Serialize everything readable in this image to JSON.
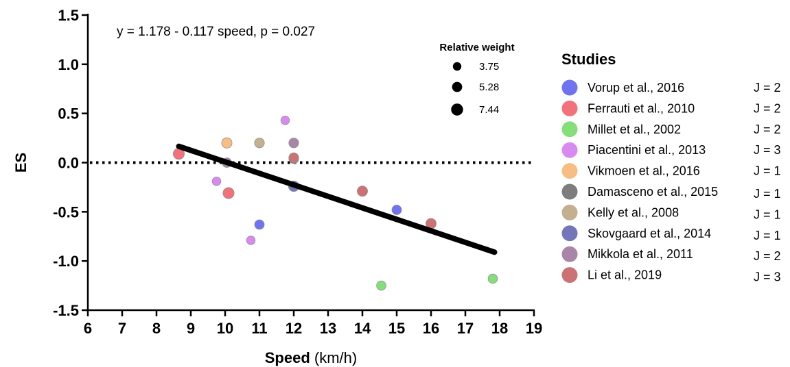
{
  "chart_data": {
    "type": "scatter",
    "xlabel": "Speed",
    "xlabel_unit": " (km/h)",
    "ylabel": "ES",
    "xlim": [
      6,
      19
    ],
    "ylim": [
      -1.5,
      1.5
    ],
    "x_ticks": [
      6,
      7,
      8,
      9,
      10,
      11,
      12,
      13,
      14,
      15,
      16,
      17,
      18,
      19
    ],
    "y_ticks": [
      "1.5",
      "1.0",
      "0.5",
      "0.0",
      "-0.5",
      "-1.0",
      "-1.5"
    ],
    "y_tick_values": [
      1.5,
      1.0,
      0.5,
      0.0,
      -0.5,
      -1.0,
      -1.5
    ],
    "reference_line": {
      "y": 0,
      "style": "dotted"
    },
    "regression": {
      "label": "y = 1.178 - 0.117 speed, p = 0.027",
      "intercept": 1.178,
      "slope": -0.117,
      "x_range": [
        8.65,
        17.85
      ]
    },
    "size_legend": {
      "title": "Relative weight",
      "items": [
        {
          "label": "3.75",
          "weight": 3.75
        },
        {
          "label": "5.28",
          "weight": 5.28
        },
        {
          "label": "7.44",
          "weight": 7.44
        }
      ]
    },
    "legend": {
      "title": "Studies",
      "placement": "right",
      "items": [
        {
          "name": "Vorup et al., 2016",
          "j": "J = 2",
          "color": "#6f73f2"
        },
        {
          "name": "Ferrauti et al., 2010",
          "j": "J = 2",
          "color": "#f2717a"
        },
        {
          "name": "Millet et al., 2002",
          "j": "J = 2",
          "color": "#84df7b"
        },
        {
          "name": "Piacentini et al., 2013",
          "j": "J = 3",
          "color": "#d98af0"
        },
        {
          "name": "Vikmoen et al., 2016",
          "j": "J = 1",
          "color": "#f8bd83"
        },
        {
          "name": "Damasceno et al., 2015",
          "j": "J = 1",
          "color": "#7d7d7d"
        },
        {
          "name": "Kelly et al., 2008",
          "j": "J = 1",
          "color": "#c4b08f"
        },
        {
          "name": "Skovgaard et al., 2014",
          "j": "J = 1",
          "color": "#7377b9"
        },
        {
          "name": "Mikkola et al., 2011",
          "j": "J = 2",
          "color": "#a985a8"
        },
        {
          "name": "Li et al., 2019",
          "j": "J = 3",
          "color": "#cc7275"
        }
      ]
    },
    "points": [
      {
        "study": "Vorup et al., 2016",
        "x": 11.0,
        "y": -0.63,
        "weight": 4.8
      },
      {
        "study": "Vorup et al., 2016",
        "x": 15.0,
        "y": -0.48,
        "weight": 4.8
      },
      {
        "study": "Ferrauti et al., 2010",
        "x": 8.65,
        "y": 0.09,
        "weight": 6.4
      },
      {
        "study": "Ferrauti et al., 2010",
        "x": 10.1,
        "y": -0.31,
        "weight": 6.4
      },
      {
        "study": "Millet et al., 2002",
        "x": 14.55,
        "y": -1.25,
        "weight": 4.6
      },
      {
        "study": "Millet et al., 2002",
        "x": 17.8,
        "y": -1.18,
        "weight": 4.6
      },
      {
        "study": "Piacentini et al., 2013",
        "x": 11.75,
        "y": 0.43,
        "weight": 3.9
      },
      {
        "study": "Piacentini et al., 2013",
        "x": 9.75,
        "y": -0.19,
        "weight": 3.9
      },
      {
        "study": "Piacentini et al., 2013",
        "x": 10.75,
        "y": -0.79,
        "weight": 3.9
      },
      {
        "study": "Vikmoen et al., 2016",
        "x": 10.05,
        "y": 0.2,
        "weight": 5.6
      },
      {
        "study": "Damasceno et al., 2015",
        "x": 12.0,
        "y": 0.04,
        "weight": 5.0
      },
      {
        "study": "Kelly et al., 2008",
        "x": 11.0,
        "y": 0.2,
        "weight": 5.0
      },
      {
        "study": "Skovgaard et al., 2014",
        "x": 12.0,
        "y": -0.24,
        "weight": 5.8
      },
      {
        "study": "Mikkola et al., 2011",
        "x": 12.0,
        "y": 0.2,
        "weight": 5.0
      },
      {
        "study": "Mikkola et al., 2011",
        "x": 10.05,
        "y": 0.0,
        "weight": 4.8
      },
      {
        "study": "Li et al., 2019",
        "x": 12.0,
        "y": 0.05,
        "weight": 5.0
      },
      {
        "study": "Li et al., 2019",
        "x": 14.0,
        "y": -0.29,
        "weight": 5.6
      },
      {
        "study": "Li et al., 2019",
        "x": 16.0,
        "y": -0.62,
        "weight": 5.6
      }
    ]
  }
}
